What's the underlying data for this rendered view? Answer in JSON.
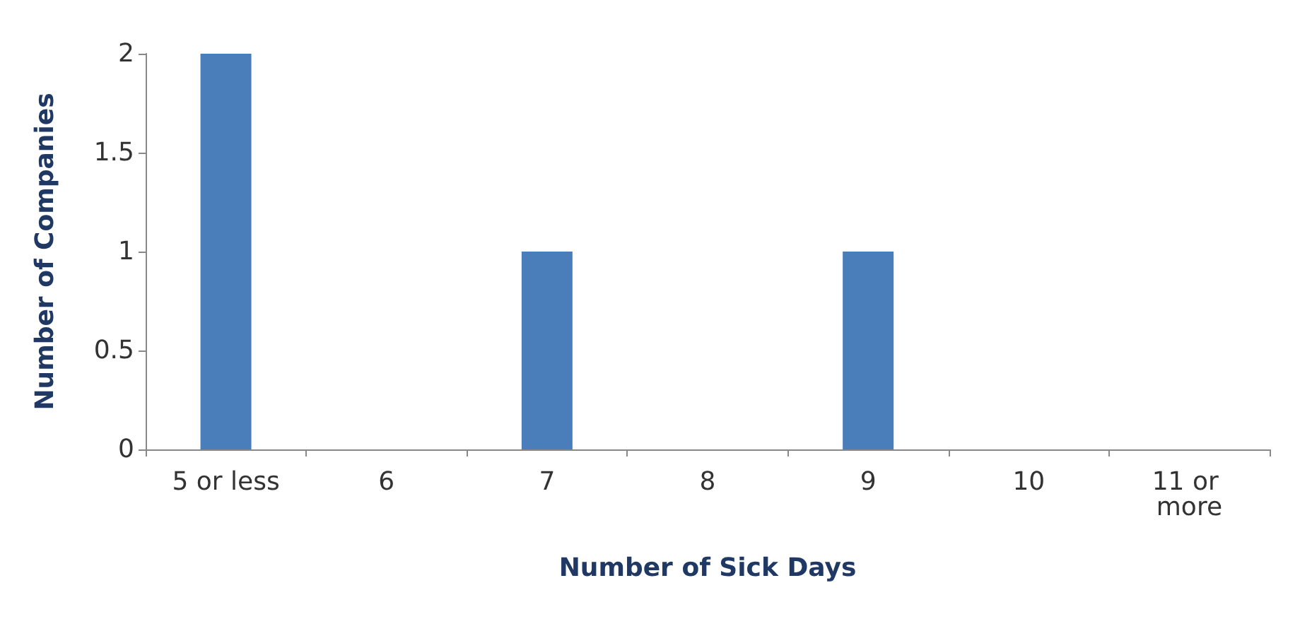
{
  "chart_data": {
    "type": "bar",
    "xlabel": "Number of Sick Days",
    "ylabel": "Number of Companies",
    "categories": [
      "5 or less",
      "6",
      "7",
      "8",
      "9",
      "10",
      "11 or more"
    ],
    "values": [
      2,
      0,
      1,
      0,
      1,
      0,
      0
    ],
    "color": "#4a7ebb",
    "ylim": [
      0,
      2
    ],
    "yticks": [
      0,
      0.5,
      1,
      1.5,
      2
    ],
    "grid": false
  }
}
